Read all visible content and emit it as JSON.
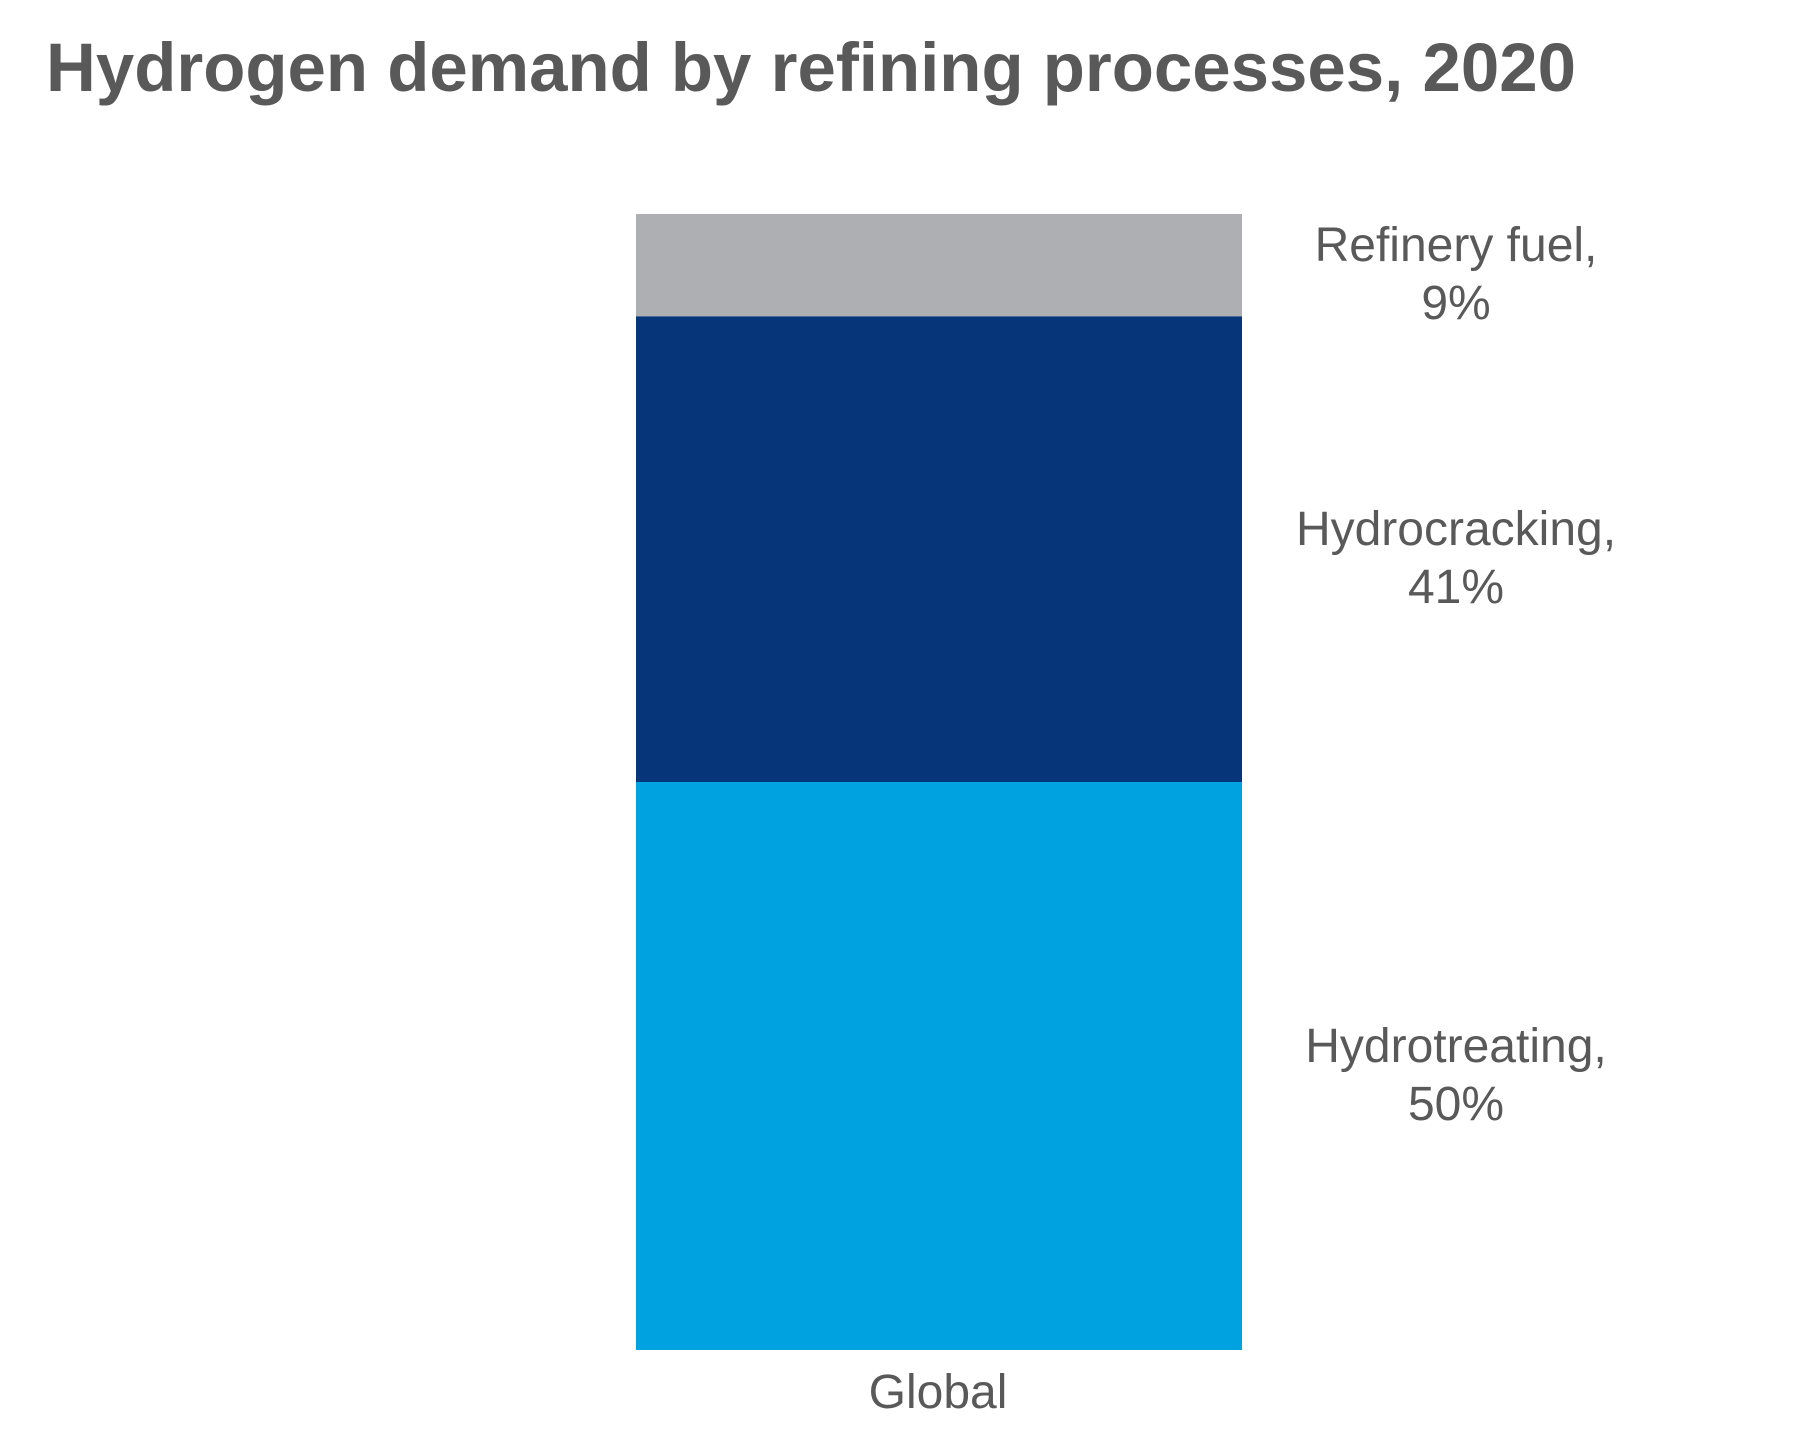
{
  "chart_data": {
    "type": "bar",
    "stacked": true,
    "title": "Hydrogen demand by refining processes, 2020",
    "categories": [
      "Global"
    ],
    "series": [
      {
        "name": "Hydrotreating",
        "values": [
          50
        ],
        "label_line1": "Hydrotreating,",
        "label_line2": "50%",
        "color": "#00a3e0"
      },
      {
        "name": "Hydrocracking",
        "values": [
          41
        ],
        "label_line1": "Hydrocracking,",
        "label_line2": "41%",
        "color": "#06357a"
      },
      {
        "name": "Refinery fuel",
        "values": [
          9
        ],
        "label_line1": "Refinery fuel,",
        "label_line2": "9%",
        "color": "#aeafb3"
      }
    ],
    "ylim": [
      0,
      100
    ],
    "grid": false,
    "xlabel": "",
    "ylabel": ""
  }
}
